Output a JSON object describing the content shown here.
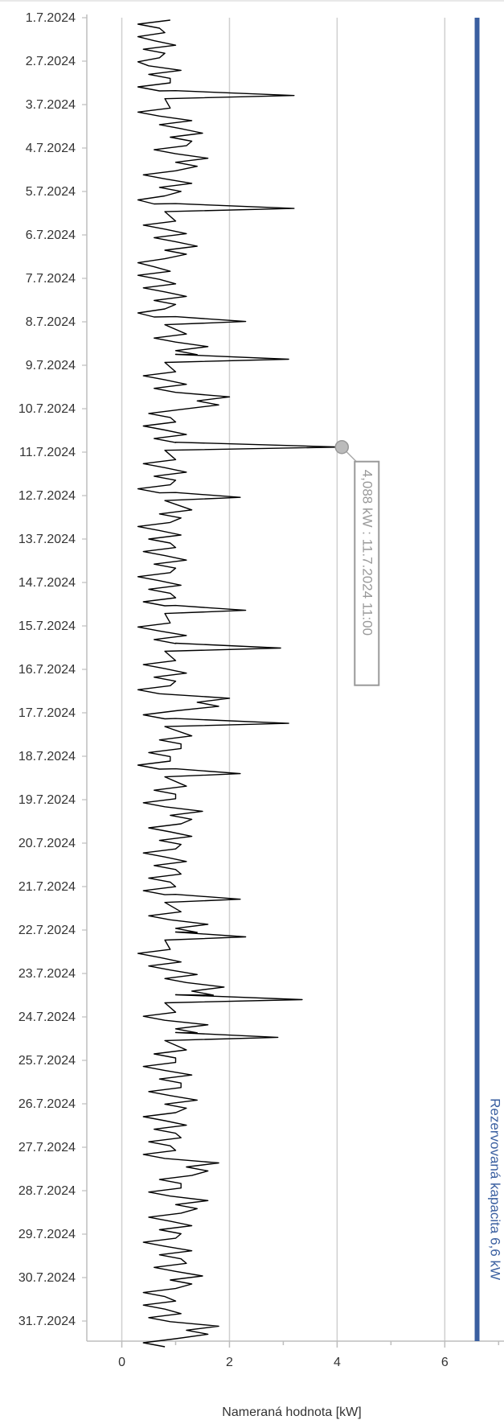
{
  "chart_data": {
    "type": "line",
    "orientation": "vertical-time",
    "xlabel": "Nameraná hodnota [kW]",
    "xlim": [
      -0.65,
      7.1
    ],
    "x_ticks": [
      0,
      2,
      4,
      6
    ],
    "date_labels": [
      "1.7.2024",
      "2.7.2024",
      "3.7.2024",
      "4.7.2024",
      "5.7.2024",
      "6.7.2024",
      "7.7.2024",
      "8.7.2024",
      "9.7.2024",
      "10.7.2024",
      "11.7.2024",
      "12.7.2024",
      "13.7.2024",
      "14.7.2024",
      "15.7.2024",
      "16.7.2024",
      "17.7.2024",
      "18.7.2024",
      "19.7.2024",
      "20.7.2024",
      "21.7.2024",
      "22.7.2024",
      "23.7.2024",
      "24.7.2024",
      "25.7.2024",
      "26.7.2024",
      "27.7.2024",
      "28.7.2024",
      "29.7.2024",
      "30.7.2024",
      "31.7.2024"
    ],
    "grid": true,
    "series": [
      {
        "values": [
          0.9,
          0.8,
          1.0,
          0.7,
          1.1,
          0.9,
          3.2,
          0.9,
          1.3,
          1.5,
          1.2,
          1.6,
          1.0,
          1.3,
          0.8,
          3.2,
          1.0,
          1.2,
          1.4,
          0.8,
          0.9,
          1.0,
          1.2,
          0.8,
          2.3,
          1.2,
          1.6,
          3.1,
          1.0,
          1.2,
          2.0,
          1.1,
          1.0,
          1.2,
          4.088,
          1.0,
          1.2,
          0.9,
          2.2,
          1.3,
          0.9,
          1.1,
          1.0,
          1.2,
          0.9,
          1.1,
          1.0,
          2.3,
          0.9,
          1.2,
          2.95,
          1.0,
          1.2,
          0.9,
          2.0,
          1.0,
          3.1,
          1.3,
          1.1,
          0.9,
          2.2,
          1.2,
          1.0,
          1.5,
          1.1,
          1.3,
          1.0,
          1.2,
          1.1,
          1.0,
          2.2,
          1.1,
          1.6,
          2.3,
          0.9,
          1.1,
          1.4,
          1.9,
          3.35,
          1.0,
          1.6,
          2.9,
          1.2,
          1.0,
          1.3,
          1.1,
          1.4,
          1.0,
          1.2,
          1.1,
          1.0,
          1.8,
          1.3,
          1.1,
          1.6,
          1.1,
          1.3,
          1.0,
          1.3,
          1.2,
          1.5,
          1.0,
          1.0,
          1.1,
          1.8,
          1.0
        ]
      }
    ],
    "reference_line": {
      "value": 6.6,
      "label": "Rezervovaná kapacita 6,6 kW",
      "color": "#3a5fa0"
    },
    "annotation": {
      "x": 4.088,
      "text": "4,088 kW : 11.7.2024 11:00"
    }
  }
}
